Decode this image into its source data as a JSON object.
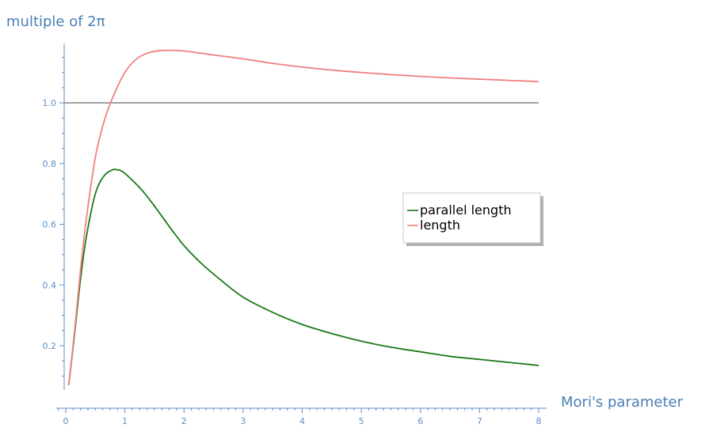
{
  "chart_data": {
    "type": "line",
    "title": "",
    "xlabel": "Mori's parameter",
    "ylabel": "multiple of 2π",
    "xlim": [
      0,
      8
    ],
    "ylim": [
      0.05,
      1.2
    ],
    "x_ticks": [
      0,
      1,
      2,
      3,
      4,
      5,
      6,
      7,
      8
    ],
    "y_ticks": [
      0.2,
      0.4,
      0.6,
      0.8,
      1.0
    ],
    "x_tick_labels": [
      "0",
      "1",
      "2",
      "3",
      "4",
      "5",
      "6",
      "7",
      "8"
    ],
    "y_tick_labels": [
      "0.2",
      "0.4",
      "0.6",
      "0.8",
      "1.0"
    ],
    "reference_line": {
      "y": 1.0,
      "color": "#808080"
    },
    "legend_position": "center-right",
    "grid": false,
    "series": [
      {
        "name": "parallel length",
        "color": "#1a7a1a",
        "x": [
          0.05,
          0.15,
          0.25,
          0.35,
          0.5,
          0.65,
          0.8,
          0.85,
          0.95,
          1.1,
          1.3,
          1.5,
          1.8,
          2.0,
          2.3,
          2.6,
          3.0,
          3.5,
          4.0,
          4.5,
          5.0,
          5.5,
          6.0,
          6.5,
          7.0,
          7.5,
          8.0
        ],
        "y": [
          0.07,
          0.24,
          0.42,
          0.56,
          0.7,
          0.76,
          0.78,
          0.78,
          0.775,
          0.75,
          0.71,
          0.66,
          0.58,
          0.53,
          0.47,
          0.42,
          0.36,
          0.31,
          0.27,
          0.24,
          0.215,
          0.195,
          0.18,
          0.165,
          0.155,
          0.145,
          0.135
        ]
      },
      {
        "name": "length",
        "color": "#f08080",
        "x": [
          0.05,
          0.15,
          0.25,
          0.35,
          0.5,
          0.65,
          0.8,
          1.0,
          1.2,
          1.4,
          1.6,
          1.8,
          2.0,
          2.3,
          2.6,
          3.0,
          3.5,
          4.0,
          4.5,
          5.0,
          5.5,
          6.0,
          6.5,
          7.0,
          7.5,
          8.0
        ],
        "y": [
          0.07,
          0.25,
          0.45,
          0.62,
          0.82,
          0.94,
          1.02,
          1.1,
          1.145,
          1.165,
          1.172,
          1.173,
          1.171,
          1.163,
          1.155,
          1.145,
          1.13,
          1.118,
          1.108,
          1.1,
          1.093,
          1.087,
          1.082,
          1.078,
          1.074,
          1.07
        ]
      }
    ]
  }
}
